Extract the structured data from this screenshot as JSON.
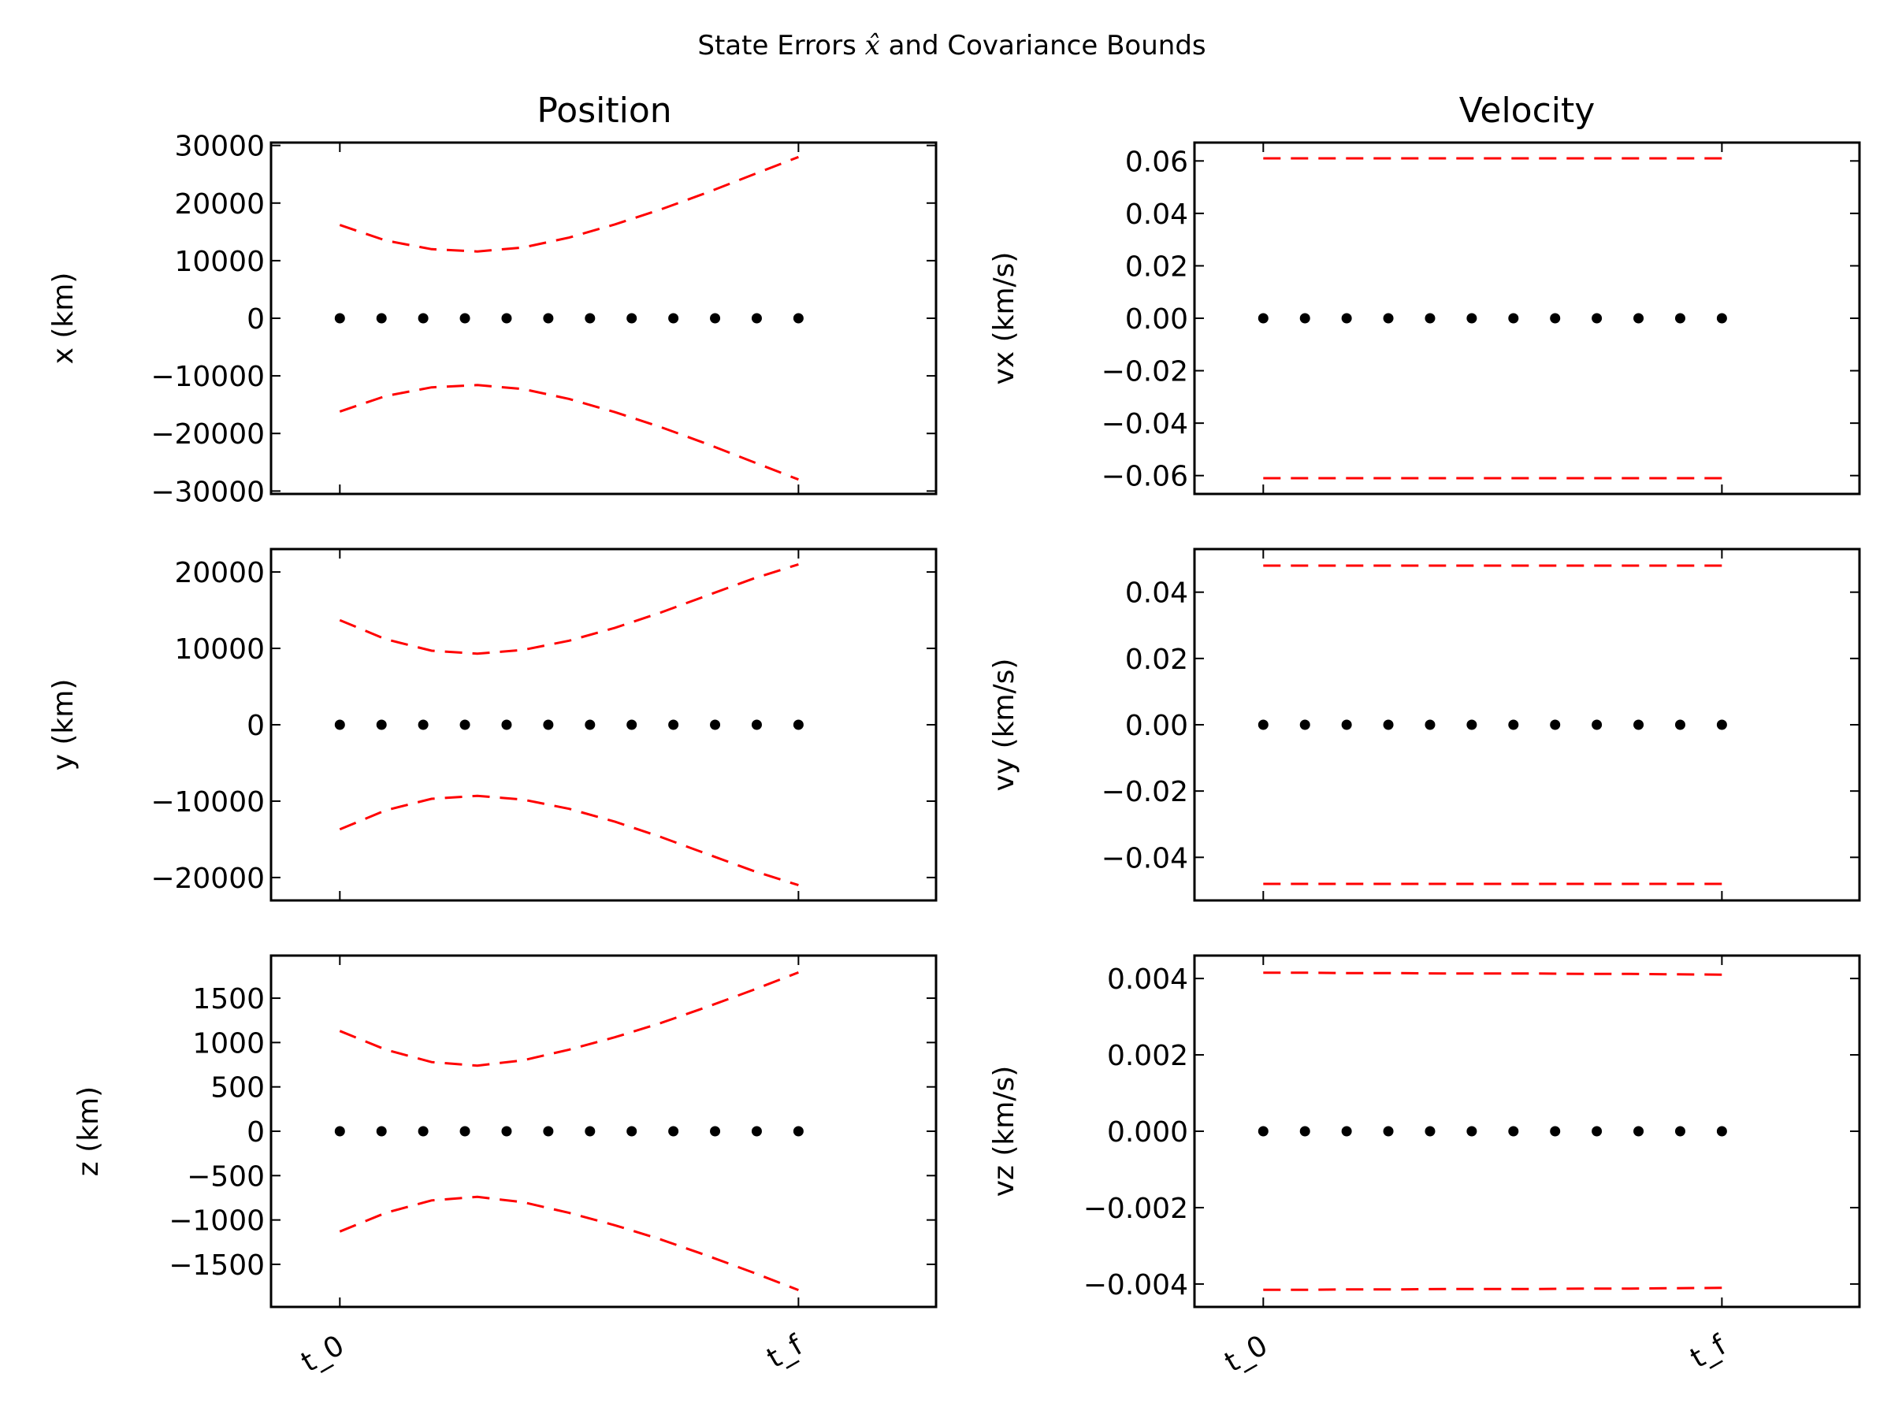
{
  "figure": {
    "suptitle_pre": "State Errors ",
    "suptitle_symbol": "x̂",
    "suptitle_post": " and Covariance Bounds",
    "columns": [
      "Position",
      "Velocity"
    ]
  },
  "chart_data": [
    {
      "type": "scatter",
      "column": "Position",
      "ylabel": "x (km)",
      "ylim": [
        -30500,
        30500
      ],
      "yticks": [
        30000,
        20000,
        10000,
        0,
        -10000,
        -20000,
        -30000
      ],
      "ytick_labels": [
        "30000",
        "20000",
        "10000",
        "0",
        "−10000",
        "−20000",
        "−30000"
      ],
      "xlim": [
        -0.15,
        1.3
      ],
      "xtick_labels": [],
      "errors": [
        0,
        0,
        0,
        0,
        0,
        0,
        0,
        0,
        0,
        0,
        0,
        0
      ],
      "bound": [
        16200,
        13500,
        12000,
        11600,
        12300,
        14000,
        16300,
        18900,
        21800,
        24900,
        28000
      ],
      "bound_color": "#ff0000",
      "error_color": "#000000",
      "grid": false
    },
    {
      "type": "scatter",
      "column": "Velocity",
      "ylabel": "vx (km/s)",
      "ylim": [
        -0.067,
        0.067
      ],
      "yticks": [
        0.06,
        0.04,
        0.02,
        0.0,
        -0.02,
        -0.04,
        -0.06
      ],
      "ytick_labels": [
        "0.06",
        "0.04",
        "0.02",
        "0.00",
        "−0.02",
        "−0.04",
        "−0.06"
      ],
      "xlim": [
        -0.15,
        1.3
      ],
      "xtick_labels": [],
      "errors": [
        0,
        0,
        0,
        0,
        0,
        0,
        0,
        0,
        0,
        0,
        0,
        0
      ],
      "bound": [
        0.061,
        0.061,
        0.061,
        0.061,
        0.061,
        0.061,
        0.061,
        0.061,
        0.061,
        0.061,
        0.061
      ],
      "bound_color": "#ff0000",
      "error_color": "#000000",
      "grid": false
    },
    {
      "type": "scatter",
      "column": "Position",
      "ylabel": "y (km)",
      "ylim": [
        -23000,
        23000
      ],
      "yticks": [
        20000,
        10000,
        0,
        -10000,
        -20000
      ],
      "ytick_labels": [
        "20000",
        "10000",
        "0",
        "−10000",
        "−20000"
      ],
      "xlim": [
        -0.15,
        1.3
      ],
      "xtick_labels": [],
      "errors": [
        0,
        0,
        0,
        0,
        0,
        0,
        0,
        0,
        0,
        0,
        0,
        0
      ],
      "bound": [
        13700,
        11200,
        9700,
        9300,
        9800,
        11000,
        12700,
        14700,
        16900,
        19100,
        21000
      ],
      "bound_color": "#ff0000",
      "error_color": "#000000",
      "grid": false
    },
    {
      "type": "scatter",
      "column": "Velocity",
      "ylabel": "vy (km/s)",
      "ylim": [
        -0.053,
        0.053
      ],
      "yticks": [
        0.04,
        0.02,
        0.0,
        -0.02,
        -0.04
      ],
      "ytick_labels": [
        "0.04",
        "0.02",
        "0.00",
        "−0.02",
        "−0.04"
      ],
      "xlim": [
        -0.15,
        1.3
      ],
      "xtick_labels": [],
      "errors": [
        0,
        0,
        0,
        0,
        0,
        0,
        0,
        0,
        0,
        0,
        0,
        0
      ],
      "bound": [
        0.048,
        0.048,
        0.048,
        0.048,
        0.048,
        0.048,
        0.048,
        0.048,
        0.048,
        0.048,
        0.048
      ],
      "bound_color": "#ff0000",
      "error_color": "#000000",
      "grid": false
    },
    {
      "type": "scatter",
      "column": "Position",
      "ylabel": "z (km)",
      "ylim": [
        -1980,
        1980
      ],
      "yticks": [
        1500,
        1000,
        500,
        0,
        -500,
        -1000,
        -1500
      ],
      "ytick_labels": [
        "1500",
        "1000",
        "500",
        "0",
        "−500",
        "−1000",
        "−1500"
      ],
      "xlim": [
        -0.15,
        1.3
      ],
      "xtick_labels": [
        "t_0",
        "t_f"
      ],
      "errors": [
        0,
        0,
        0,
        0,
        0,
        0,
        0,
        0,
        0,
        0,
        0,
        0
      ],
      "bound": [
        1130,
        920,
        780,
        740,
        800,
        920,
        1060,
        1220,
        1400,
        1590,
        1790
      ],
      "bound_color": "#ff0000",
      "error_color": "#000000",
      "grid": false
    },
    {
      "type": "scatter",
      "column": "Velocity",
      "ylabel": "vz (km/s)",
      "ylim": [
        -0.0046,
        0.0046
      ],
      "yticks": [
        0.004,
        0.002,
        0.0,
        -0.002,
        -0.004
      ],
      "ytick_labels": [
        "0.004",
        "0.002",
        "0.000",
        "−0.002",
        "−0.004"
      ],
      "xlim": [
        -0.15,
        1.3
      ],
      "xtick_labels": [
        "t_0",
        "t_f"
      ],
      "errors": [
        0,
        0,
        0,
        0,
        0,
        0,
        0,
        0,
        0,
        0,
        0,
        0
      ],
      "bound": [
        0.00415,
        0.00415,
        0.00414,
        0.00414,
        0.00413,
        0.00413,
        0.00413,
        0.00412,
        0.00412,
        0.00411,
        0.0041
      ],
      "bound_color": "#ff0000",
      "error_color": "#000000",
      "grid": false
    }
  ]
}
